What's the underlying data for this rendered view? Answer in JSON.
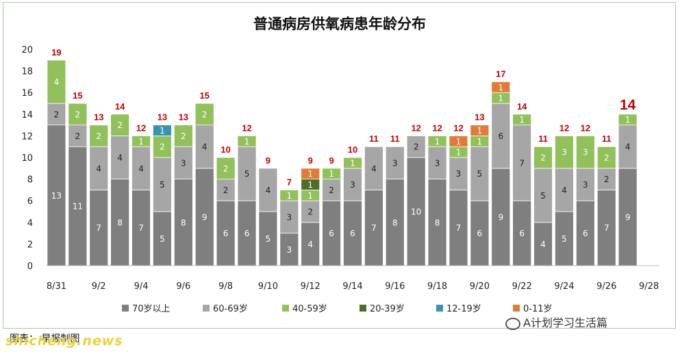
{
  "chart_data": {
    "type": "bar",
    "stacked": true,
    "title": "普通病房供氧病患年龄分布",
    "categories": [
      "8/31",
      "9/1",
      "9/2",
      "9/3",
      "9/4",
      "9/5",
      "9/6",
      "9/7",
      "9/8",
      "9/9",
      "9/10",
      "9/11",
      "9/12",
      "9/13",
      "9/14",
      "9/15",
      "9/16",
      "9/17",
      "9/18",
      "9/19",
      "9/20",
      "9/21",
      "9/22",
      "9/23",
      "9/24",
      "9/25",
      "9/26",
      "9/27",
      "9/28"
    ],
    "x_tick_labels": [
      "8/31",
      "9/2",
      "9/4",
      "9/6",
      "9/8",
      "9/10",
      "9/12",
      "9/14",
      "9/16",
      "9/18",
      "9/20",
      "9/22",
      "9/24",
      "9/26",
      "9/28"
    ],
    "ylim": [
      0,
      20
    ],
    "yticks": [
      0,
      2,
      4,
      6,
      8,
      10,
      12,
      14,
      16,
      18,
      20
    ],
    "grid": false,
    "legend_position": "bottom",
    "series": [
      {
        "name": "70岁以上",
        "color": "#7f7f7f",
        "label_color": "#ffffff",
        "values": [
          13,
          11,
          7,
          8,
          7,
          5,
          8,
          9,
          6,
          6,
          5,
          3,
          4,
          6,
          6,
          7,
          8,
          10,
          8,
          7,
          6,
          9,
          6,
          4,
          5,
          6,
          7,
          9,
          null
        ]
      },
      {
        "name": "60-69岁",
        "color": "#a6a6a6",
        "label_color": "#222222",
        "values": [
          2,
          2,
          4,
          4,
          4,
          5,
          3,
          4,
          2,
          5,
          4,
          3,
          2,
          2,
          3,
          4,
          3,
          2,
          3,
          3,
          5,
          6,
          7,
          5,
          4,
          3,
          2,
          4,
          null
        ]
      },
      {
        "name": "40-59岁",
        "color": "#92c05a",
        "label_color": "#ffffff",
        "values": [
          4,
          2,
          2,
          2,
          1,
          2,
          2,
          2,
          2,
          1,
          0,
          1,
          1,
          1,
          1,
          0,
          0,
          0,
          1,
          1,
          1,
          1,
          1,
          2,
          3,
          3,
          2,
          1,
          null
        ]
      },
      {
        "name": "20-39岁",
        "color": "#4f6d2a",
        "label_color": "#ffffff",
        "values": [
          0,
          0,
          0,
          0,
          0,
          0,
          0,
          0,
          0,
          0,
          0,
          0,
          1,
          0,
          0,
          0,
          0,
          0,
          0,
          0,
          0,
          0,
          0,
          0,
          0,
          0,
          0,
          0,
          null
        ]
      },
      {
        "name": "12-19岁",
        "color": "#3a93ae",
        "label_color": "#ffffff",
        "values": [
          0,
          0,
          0,
          0,
          0,
          1,
          0,
          0,
          0,
          0,
          0,
          0,
          0,
          0,
          0,
          0,
          0,
          0,
          0,
          0,
          0,
          0,
          0,
          0,
          0,
          0,
          0,
          0,
          null
        ]
      },
      {
        "name": "0-11岁",
        "color": "#e07b39",
        "label_color": "#ffffff",
        "values": [
          0,
          0,
          0,
          0,
          0,
          0,
          0,
          0,
          0,
          0,
          0,
          0,
          1,
          0,
          0,
          0,
          0,
          0,
          0,
          1,
          1,
          1,
          0,
          0,
          0,
          0,
          0,
          0,
          null
        ]
      }
    ],
    "totals": [
      19,
      15,
      13,
      14,
      12,
      13,
      13,
      15,
      10,
      12,
      9,
      7,
      9,
      9,
      10,
      11,
      11,
      12,
      12,
      12,
      13,
      17,
      14,
      11,
      12,
      12,
      11,
      14,
      null
    ]
  },
  "footer": {
    "source": "图表： 早报制图",
    "brand": "shicheng.news",
    "watermark": "A计划学习生活篇"
  }
}
